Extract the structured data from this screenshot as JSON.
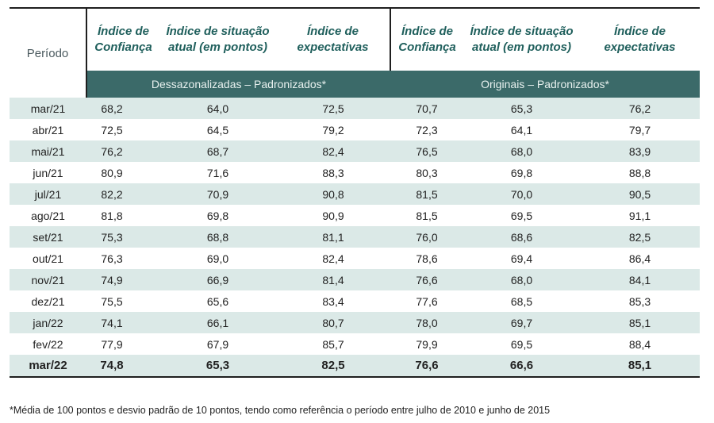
{
  "header": {
    "periodo": "Período",
    "columns": [
      "Índice de Confiança",
      "Índice de situação atual (em pontos)",
      "Índice de expectativas",
      "Índice de Confiança",
      "Índice de situação atual (em pontos)",
      "Índice de expectativas"
    ],
    "group_left": "Dessazonalizadas – Padronizados*",
    "group_right": "Originais – Padronizados*"
  },
  "rows": [
    {
      "period": "mar/21",
      "values": [
        "68,2",
        "64,0",
        "72,5",
        "70,7",
        "65,3",
        "76,2"
      ]
    },
    {
      "period": "abr/21",
      "values": [
        "72,5",
        "64,5",
        "79,2",
        "72,3",
        "64,1",
        "79,7"
      ]
    },
    {
      "period": "mai/21",
      "values": [
        "76,2",
        "68,7",
        "82,4",
        "76,5",
        "68,0",
        "83,9"
      ]
    },
    {
      "period": "jun/21",
      "values": [
        "80,9",
        "71,6",
        "88,3",
        "80,3",
        "69,8",
        "88,8"
      ]
    },
    {
      "period": "jul/21",
      "values": [
        "82,2",
        "70,9",
        "90,8",
        "81,5",
        "70,0",
        "90,5"
      ]
    },
    {
      "period": "ago/21",
      "values": [
        "81,8",
        "69,8",
        "90,9",
        "81,5",
        "69,5",
        "91,1"
      ]
    },
    {
      "period": "set/21",
      "values": [
        "75,3",
        "68,8",
        "81,1",
        "76,0",
        "68,6",
        "82,5"
      ]
    },
    {
      "period": "out/21",
      "values": [
        "76,3",
        "69,0",
        "82,4",
        "78,6",
        "69,4",
        "86,4"
      ]
    },
    {
      "period": "nov/21",
      "values": [
        "74,9",
        "66,9",
        "81,4",
        "76,6",
        "68,0",
        "84,1"
      ]
    },
    {
      "period": "dez/21",
      "values": [
        "75,5",
        "65,6",
        "83,4",
        "77,6",
        "68,5",
        "85,3"
      ]
    },
    {
      "period": "jan/22",
      "values": [
        "74,1",
        "66,1",
        "80,7",
        "78,0",
        "69,7",
        "85,1"
      ]
    },
    {
      "period": "fev/22",
      "values": [
        "77,9",
        "67,9",
        "85,7",
        "79,9",
        "69,5",
        "88,4"
      ]
    },
    {
      "period": "mar/22",
      "values": [
        "74,8",
        "65,3",
        "82,5",
        "76,6",
        "66,6",
        "85,1"
      ]
    }
  ],
  "footnote": "*Média de 100 pontos e desvio padrão de 10 pontos, tendo como referência o período entre julho de 2010 e junho de 2015",
  "colors": {
    "header_text": "#1f5f5c",
    "band": "#3b6a69",
    "stripe": "#dbe9e7"
  }
}
